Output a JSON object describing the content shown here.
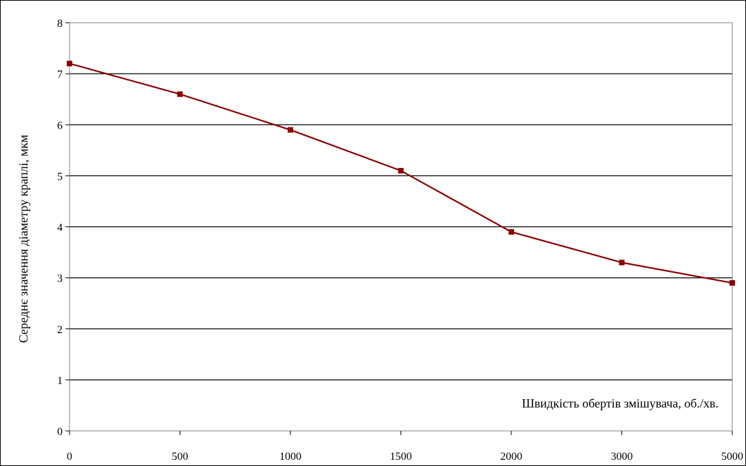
{
  "chart_data": {
    "type": "line",
    "categories": [
      "0",
      "500",
      "1000",
      "1500",
      "2000",
      "3000",
      "5000"
    ],
    "series": [
      {
        "values": [
          7.2,
          6.6,
          5.9,
          5.1,
          3.9,
          3.3,
          2.9
        ],
        "color": "#8B0000",
        "marker": "square"
      }
    ],
    "xlabel": "Швидкість обертів змішувача, об./хв.",
    "ylabel": "Середнє значення діаметру краплі, мкм",
    "ylim": [
      0,
      8
    ],
    "yticks": [
      "0",
      "1",
      "2",
      "3",
      "4",
      "5",
      "6",
      "7",
      "8"
    ],
    "grid": true,
    "gridlines_color": "#000000",
    "plot_border_color": "#808080"
  }
}
